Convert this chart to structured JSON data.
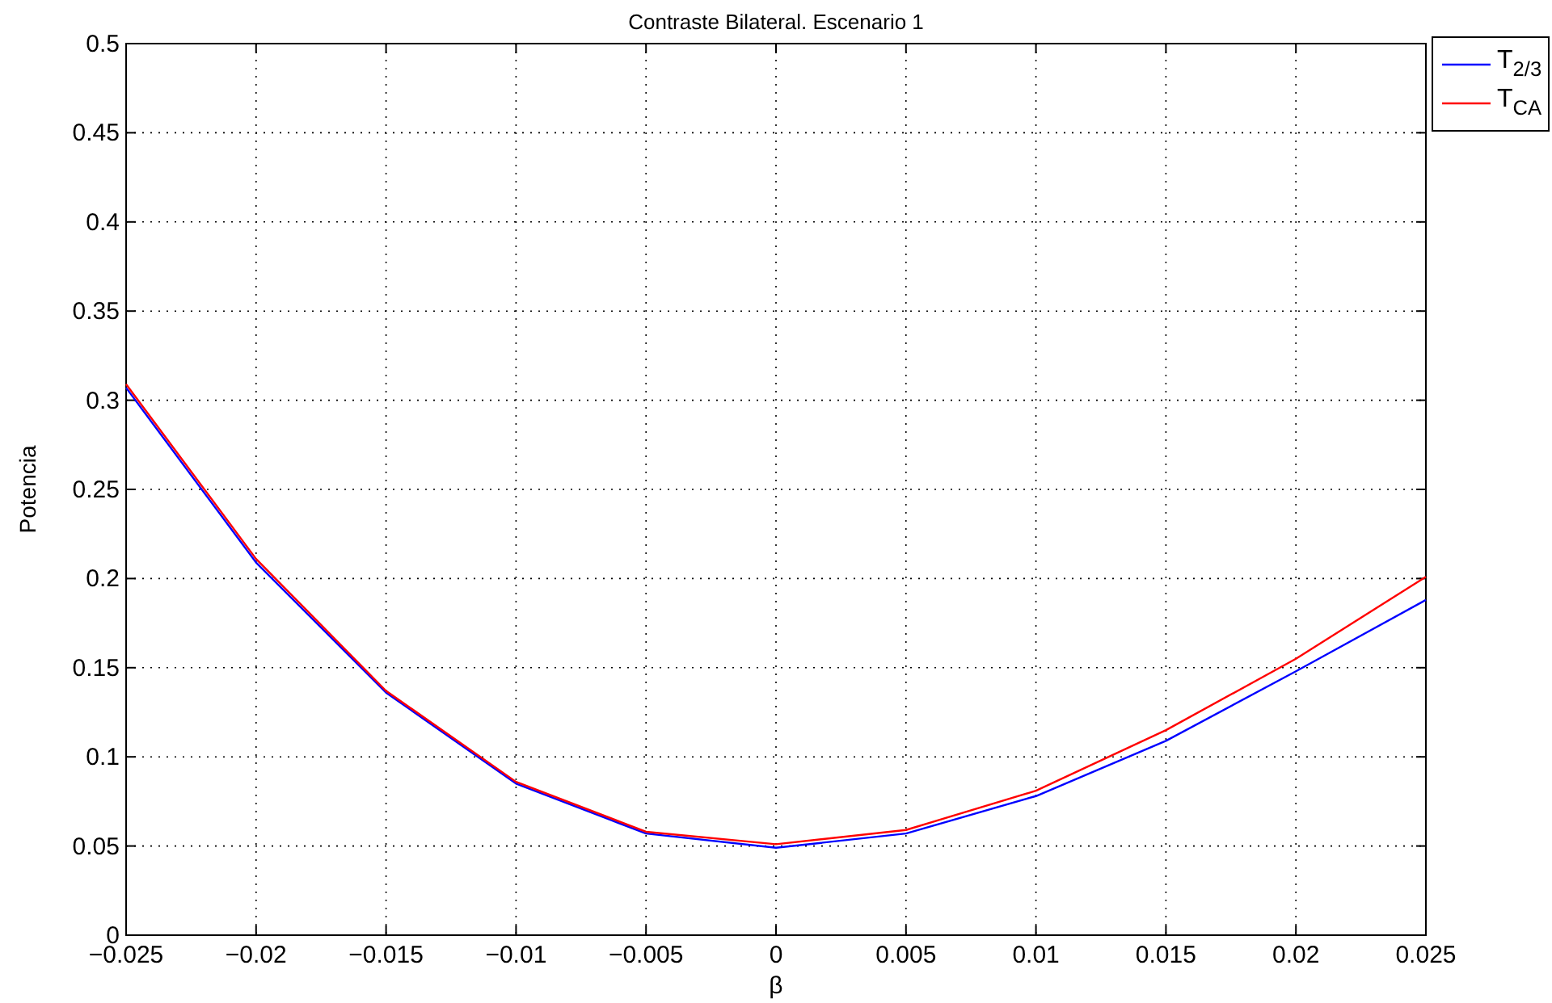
{
  "chart_data": {
    "type": "line",
    "title": "Contraste Bilateral. Escenario 1",
    "xlabel": "β",
    "ylabel": "Potencia",
    "x": [
      -0.025,
      -0.02,
      -0.015,
      -0.01,
      -0.005,
      0,
      0.005,
      0.01,
      0.015,
      0.02,
      0.025
    ],
    "series": [
      {
        "name": "T$_{2/3}$",
        "color": "#0000ff",
        "values": [
          0.307,
          0.209,
          0.136,
          0.085,
          0.057,
          0.049,
          0.057,
          0.078,
          0.109,
          0.148,
          0.188
        ]
      },
      {
        "name": "T$_{CA}$",
        "color": "#ff0000",
        "values": [
          0.309,
          0.211,
          0.137,
          0.086,
          0.058,
          0.051,
          0.059,
          0.081,
          0.115,
          0.155,
          0.201
        ]
      }
    ],
    "xlim": [
      -0.025,
      0.025
    ],
    "xticks": [
      {
        "value": -0.025,
        "label": "−0.025"
      },
      {
        "value": -0.02,
        "label": "−0.02"
      },
      {
        "value": -0.015,
        "label": "−0.015"
      },
      {
        "value": -0.01,
        "label": "−0.01"
      },
      {
        "value": -0.005,
        "label": "−0.005"
      },
      0,
      0.005,
      0.01,
      0.015,
      0.02,
      0.025
    ],
    "ylim": [
      0,
      0.5
    ],
    "yticks": [
      0,
      0.05,
      0.1,
      0.15,
      0.2,
      0.25,
      0.3,
      0.35,
      0.4,
      0.45,
      0.5
    ],
    "grid": true,
    "legend": "top right",
    "marker": "none",
    "line_style": "solid"
  }
}
